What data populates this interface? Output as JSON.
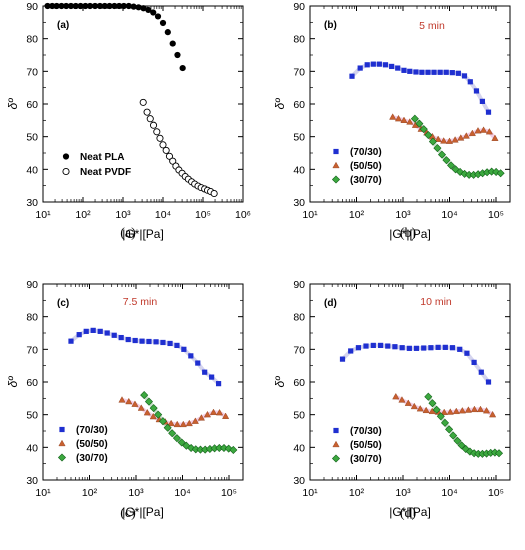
{
  "colors": {
    "blend_70_30": "#1f2fd0",
    "blend_50_50": "#c0603a",
    "blend_30_70": "#1f8c2a",
    "fit_blue": "#c9c9ea",
    "fit_pink": "#f2c2dc",
    "fit_green": "#b7d7b9",
    "time_label": "#c0392b"
  },
  "chart_data": [
    {
      "type": "scatter",
      "panel": "(a)",
      "caption": "(a)",
      "title": "",
      "xlabel": "|G*|[Pa]",
      "ylabel": "δº",
      "x_scale": "log",
      "xlim": [
        10,
        1000000
      ],
      "ylim": [
        30,
        90
      ],
      "x_ticks": [
        "10¹",
        "10²",
        "10³",
        "10⁴",
        "10⁵",
        "10⁶"
      ],
      "y_ticks": [
        "30",
        "40",
        "50",
        "60",
        "70",
        "80",
        "90"
      ],
      "legend_position": "bottom-left",
      "series": [
        {
          "name": "Neat PLA",
          "marker": "filled-circle",
          "x": [
            13,
            17,
            22,
            29,
            38,
            50,
            66,
            87,
            115,
            150,
            200,
            265,
            350,
            460,
            610,
            800,
            1050,
            1400,
            1850,
            2450,
            3250,
            4300,
            5700,
            7500,
            10000,
            13200,
            17500,
            23000,
            31000
          ],
          "y": [
            90,
            90,
            90,
            90,
            90,
            90,
            90,
            90,
            90,
            90,
            90,
            90,
            90,
            90,
            90,
            90,
            90,
            90,
            89.8,
            89.6,
            89.3,
            88.8,
            88,
            86.8,
            84.8,
            82,
            78.5,
            75,
            71
          ]
        },
        {
          "name": "Neat PVDF",
          "marker": "open-circle",
          "x": [
            3200,
            4000,
            4800,
            5800,
            7000,
            8400,
            10000,
            12000,
            14500,
            17500,
            21000,
            25000,
            30000,
            36000,
            43000,
            52000,
            62000,
            75000,
            90000,
            110000,
            130000,
            155000,
            190000
          ],
          "y": [
            60.5,
            57.5,
            55.5,
            53.5,
            51.5,
            49.5,
            47.5,
            45.8,
            44,
            42.5,
            41,
            39.8,
            38.8,
            37.8,
            37,
            36.2,
            35.5,
            34.9,
            34.4,
            34,
            33.6,
            33.2,
            32.6
          ]
        }
      ]
    },
    {
      "type": "scatter",
      "panel": "(b)",
      "caption": "(b)",
      "annotation": "5 min",
      "title": "",
      "xlabel": "|G*|[Pa]",
      "ylabel": "δº",
      "x_scale": "log",
      "xlim": [
        10,
        200000
      ],
      "ylim": [
        30,
        90
      ],
      "x_ticks": [
        "10¹",
        "10²",
        "10³",
        "10⁴",
        "10⁵"
      ],
      "y_ticks": [
        "30",
        "40",
        "50",
        "60",
        "70",
        "80",
        "90"
      ],
      "legend_position": "bottom-left",
      "series": [
        {
          "name": "(70/30)",
          "marker": "square",
          "x": [
            80,
            120,
            170,
            230,
            310,
            420,
            570,
            770,
            1050,
            1400,
            1900,
            2550,
            3450,
            4650,
            6300,
            8500,
            11500,
            15500,
            21000,
            28000,
            38000,
            51000,
            69000
          ],
          "y": [
            68.5,
            71,
            72,
            72.2,
            72.2,
            72,
            71.5,
            71,
            70.3,
            70,
            69.8,
            69.7,
            69.7,
            69.7,
            69.7,
            69.7,
            69.6,
            69.4,
            68.6,
            66.8,
            64,
            60.8,
            57.5
          ]
        },
        {
          "name": "(50/50)",
          "marker": "triangle",
          "x": [
            600,
            800,
            1050,
            1400,
            1850,
            2450,
            3250,
            4300,
            5700,
            7500,
            10000,
            13200,
            17500,
            23000,
            31000,
            41000,
            54000,
            72000,
            95000
          ],
          "y": [
            56,
            55.5,
            55,
            54.5,
            53.5,
            52.3,
            51.2,
            50,
            49.2,
            48.7,
            48.6,
            49,
            49.6,
            50.2,
            51,
            51.8,
            52,
            51.5,
            49.5
          ]
        },
        {
          "name": "(30/70)",
          "marker": "diamond",
          "x": [
            1800,
            2250,
            2800,
            3500,
            4400,
            5500,
            6900,
            8600,
            10800,
            13500,
            16900,
            21100,
            26400,
            33000,
            41200,
            51500,
            64400,
            80500,
            100600,
            125700
          ],
          "y": [
            55.5,
            54,
            52.3,
            50.5,
            48.5,
            46.5,
            44.5,
            42.8,
            41.2,
            40,
            39.2,
            38.6,
            38.3,
            38.3,
            38.5,
            38.8,
            39.1,
            39.3,
            39.2,
            38.8
          ]
        }
      ]
    },
    {
      "type": "scatter",
      "panel": "(c)",
      "caption": "(c)",
      "annotation": "7.5 min",
      "title": "",
      "xlabel": "|G*|[Pa]",
      "ylabel": "δº",
      "x_scale": "log",
      "xlim": [
        10,
        200000
      ],
      "ylim": [
        30,
        90
      ],
      "x_ticks": [
        "10¹",
        "10²",
        "10³",
        "10⁴",
        "10⁵"
      ],
      "y_ticks": [
        "30",
        "40",
        "50",
        "60",
        "70",
        "80",
        "90"
      ],
      "legend_position": "bottom-left",
      "series": [
        {
          "name": "(70/30)",
          "marker": "square",
          "x": [
            40,
            60,
            85,
            120,
            170,
            240,
            340,
            480,
            680,
            960,
            1350,
            1900,
            2700,
            3800,
            5400,
            7600,
            10700,
            15100,
            21300,
            30000,
            42300,
            59700
          ],
          "y": [
            72.5,
            74.5,
            75.5,
            75.8,
            75.5,
            75,
            74.3,
            73.6,
            73,
            72.7,
            72.5,
            72.4,
            72.3,
            72.1,
            71.8,
            71.2,
            70,
            68,
            65.8,
            63,
            61.5,
            59.5
          ]
        },
        {
          "name": "(50/50)",
          "marker": "triangle",
          "x": [
            500,
            700,
            950,
            1300,
            1750,
            2350,
            3150,
            4250,
            5700,
            7700,
            10400,
            14000,
            18900,
            25500,
            34400,
            46400,
            62600,
            84500
          ],
          "y": [
            54.5,
            54,
            53.2,
            52,
            50.6,
            49.4,
            48.5,
            47.8,
            47.3,
            47,
            47,
            47.3,
            48,
            49,
            50,
            50.7,
            50.6,
            49.5
          ]
        },
        {
          "name": "(30/70)",
          "marker": "diamond",
          "x": [
            1500,
            1900,
            2400,
            3000,
            3800,
            4800,
            6000,
            7600,
            9600,
            12100,
            15300,
            19300,
            24300,
            30700,
            38800,
            49000,
            61800,
            78000,
            98500,
            124000
          ],
          "y": [
            56,
            54,
            52,
            50,
            48,
            46,
            44.3,
            42.8,
            41.5,
            40.5,
            39.8,
            39.4,
            39.3,
            39.3,
            39.5,
            39.7,
            39.8,
            39.8,
            39.6,
            39.2
          ]
        }
      ]
    },
    {
      "type": "scatter",
      "panel": "(d)",
      "caption": "(d)",
      "annotation": "10 min",
      "title": "",
      "xlabel": "|G*|[Pa]",
      "ylabel": "δº",
      "x_scale": "log",
      "xlim": [
        10,
        200000
      ],
      "ylim": [
        30,
        90
      ],
      "x_ticks": [
        "10¹",
        "10²",
        "10³",
        "10⁴",
        "10⁵"
      ],
      "y_ticks": [
        "30",
        "40",
        "50",
        "60",
        "70",
        "80",
        "90"
      ],
      "legend_position": "bottom-left",
      "series": [
        {
          "name": "(70/30)",
          "marker": "square",
          "x": [
            50,
            75,
            110,
            160,
            230,
            330,
            470,
            670,
            960,
            1370,
            1950,
            2790,
            3980,
            5690,
            8130,
            11600,
            16600,
            23700,
            33800,
            48300,
            69000
          ],
          "y": [
            67,
            69.5,
            70.5,
            71,
            71.2,
            71.2,
            71,
            70.8,
            70.5,
            70.3,
            70.3,
            70.4,
            70.5,
            70.6,
            70.6,
            70.5,
            70,
            68.8,
            66,
            63,
            60
          ]
        },
        {
          "name": "(50/50)",
          "marker": "triangle",
          "x": [
            700,
            950,
            1300,
            1750,
            2350,
            3150,
            4250,
            5700,
            7700,
            10400,
            14000,
            18900,
            25500,
            34400,
            46400,
            62600,
            84500
          ],
          "y": [
            55.5,
            54.5,
            53.5,
            52.5,
            51.8,
            51.3,
            51,
            50.8,
            50.7,
            50.8,
            51,
            51.2,
            51.4,
            51.6,
            51.6,
            51.2,
            50
          ]
        },
        {
          "name": "(30/70)",
          "marker": "diamond",
          "x": [
            3500,
            4300,
            5300,
            6500,
            8000,
            9800,
            12000,
            14800,
            18200,
            22400,
            27500,
            33800,
            41500,
            51000,
            62700,
            77000,
            94700,
            116000
          ],
          "y": [
            55.5,
            53.5,
            51.5,
            49.5,
            47.5,
            45.5,
            43.6,
            42,
            40.6,
            39.5,
            38.7,
            38.2,
            38,
            38,
            38.1,
            38.3,
            38.4,
            38.2
          ]
        }
      ]
    }
  ]
}
